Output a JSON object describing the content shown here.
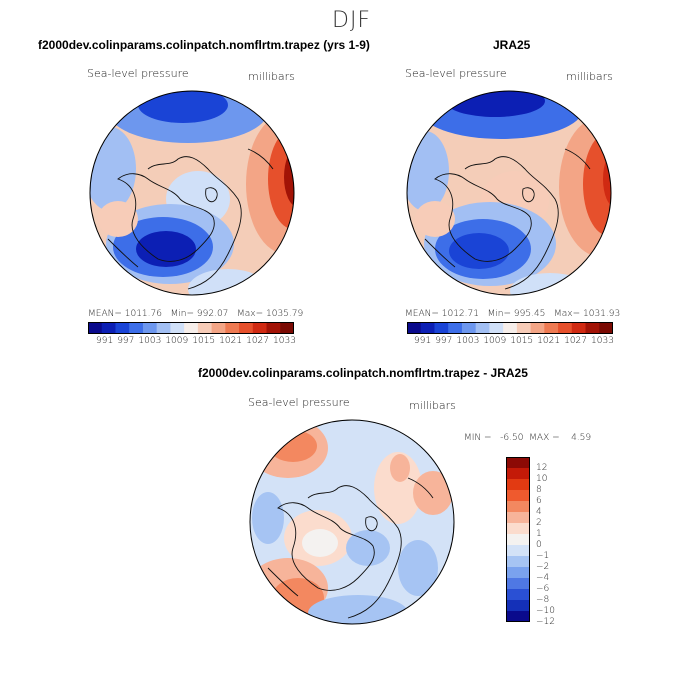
{
  "page": {
    "season": "DJF"
  },
  "panels": [
    {
      "id": "model",
      "title": "f2000dev.colinparams.colinpatch.nomflrtm.trapez (yrs 1-9)",
      "variable": "Sea-level pressure",
      "units": "millibars",
      "stats": "MEAN= 1011.76   Min= 992.07   Max= 1035.79",
      "colorbar_labels": [
        "991",
        "997",
        "1003",
        "1009",
        "1015",
        "1021",
        "1027",
        "1033"
      ]
    },
    {
      "id": "obs",
      "title": "JRA25",
      "variable": "Sea-level pressure",
      "units": "millibars",
      "stats": "MEAN= 1012.71   Min= 995.45   Max= 1031.93",
      "colorbar_labels": [
        "991",
        "997",
        "1003",
        "1009",
        "1015",
        "1021",
        "1027",
        "1033"
      ]
    },
    {
      "id": "diff",
      "title": "f2000dev.colinparams.colinpatch.nomflrtm.trapez - JRA25",
      "variable": "Sea-level pressure",
      "units": "millibars",
      "minmax": "MIN =   -6.50  MAX =    4.59",
      "colorbar_labels": [
        "12",
        "10",
        "8",
        "6",
        "4",
        "2",
        "1",
        "0",
        "−1",
        "−2",
        "−4",
        "−6",
        "−8",
        "−10",
        "−12"
      ]
    }
  ],
  "colors": {
    "full_scale": [
      "#0a0a8c",
      "#0c1fb4",
      "#1a44d6",
      "#3d6ee8",
      "#6d97ee",
      "#a2bff3",
      "#d0e0f8",
      "#f6eeea",
      "#f7ccb8",
      "#f3a586",
      "#ee7a52",
      "#e6502c",
      "#d02a12",
      "#a21306",
      "#7a0a03"
    ],
    "diff_scale": [
      "#8c0a05",
      "#c41a08",
      "#e23a12",
      "#ef5a2e",
      "#f38860",
      "#f7b49a",
      "#fbdccd",
      "#f4f2f0",
      "#d3e2f7",
      "#a6c4f3",
      "#7aa2ee",
      "#4f78e4",
      "#2a50d4",
      "#1430b8",
      "#0a0a8c"
    ]
  }
}
